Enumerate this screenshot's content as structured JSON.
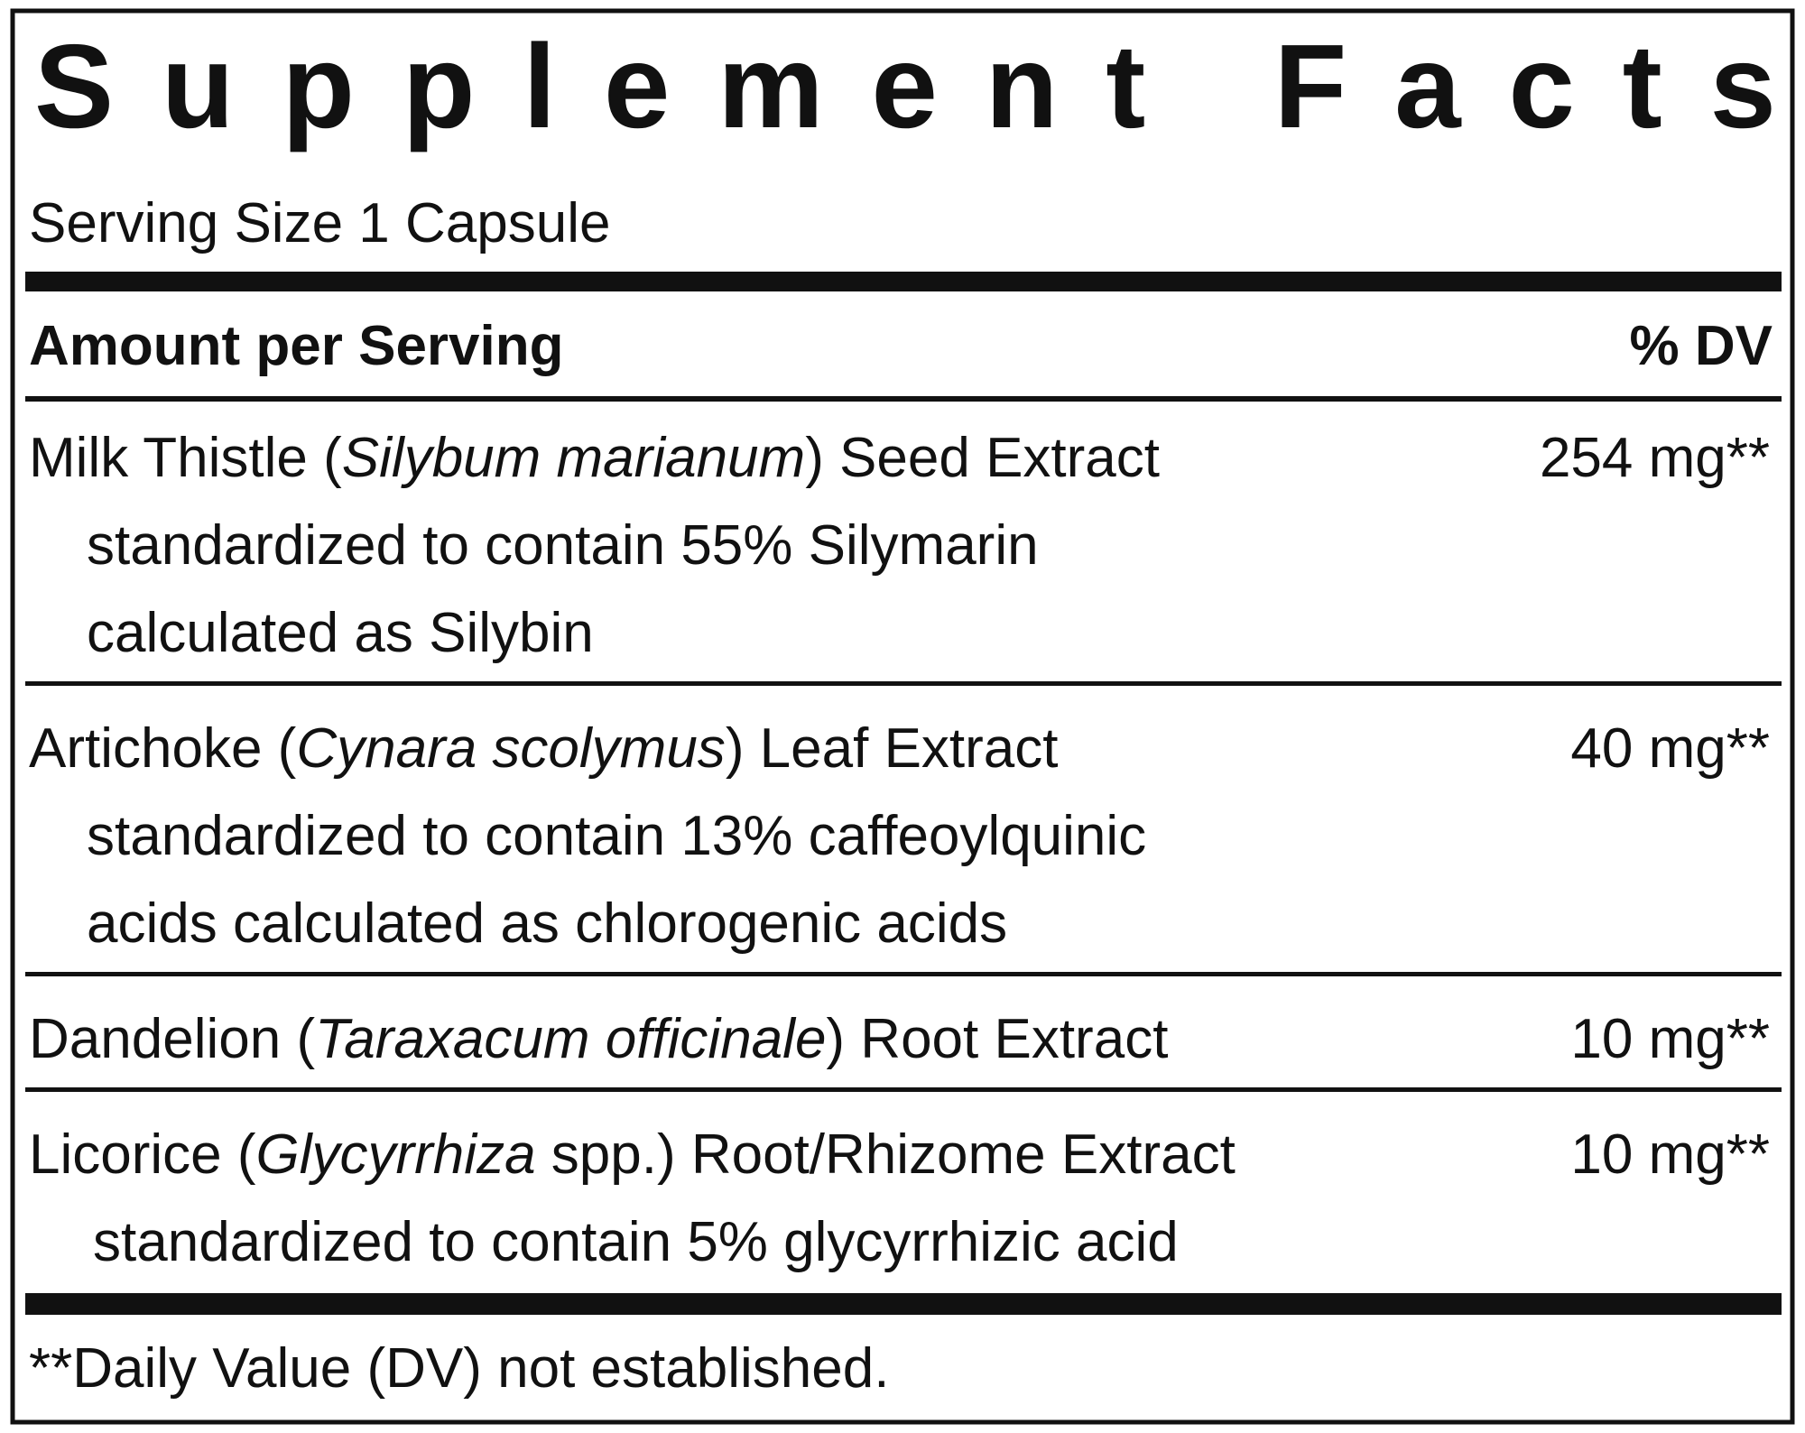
{
  "title": "Supplement Facts",
  "serving_size": "Serving Size 1 Capsule",
  "header": {
    "amount": "Amount per Serving",
    "dv": "% DV"
  },
  "rows": [
    {
      "name": [
        "Milk Thistle (",
        "Silybum marianum",
        ") Seed Extract"
      ],
      "details": [
        "standardized to contain 55% Silymarin",
        "calculated as Silybin"
      ],
      "amount": "254 mg**"
    },
    {
      "name": [
        "Artichoke (",
        "Cynara scolymus",
        ") Leaf Extract"
      ],
      "details": [
        "standardized to contain 13% caffeoylquinic",
        "acids calculated as chlorogenic acids"
      ],
      "amount": "40 mg**"
    },
    {
      "name": [
        "Dandelion (",
        "Taraxacum officinale",
        ") Root Extract"
      ],
      "details": [],
      "amount": "10 mg**"
    },
    {
      "name": [
        "Licorice (",
        "Glycyrrhiza",
        " spp.) Root/Rhizome Extract"
      ],
      "details": [
        "standardized to contain 5% glycyrrhizic acid"
      ],
      "amount": "10 mg**"
    }
  ],
  "footnote": "**Daily Value (DV) not established."
}
